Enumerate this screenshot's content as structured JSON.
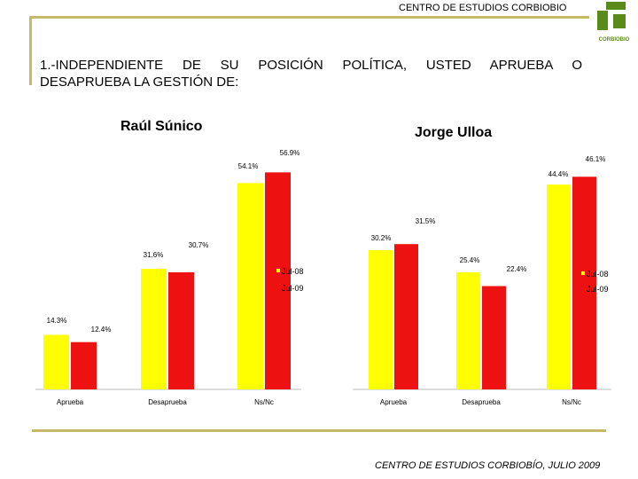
{
  "header": {
    "title": "CENTRO DE ESTUDIOS CORBIOBIO",
    "logo_text": "CORBIOBIO"
  },
  "question": {
    "line1": "1.-INDEPENDIENTE DE SU POSICIÓN POLÍTICA, USTED APRUEBA O",
    "line2": "DESAPRUEBA LA GESTIÓN DE:"
  },
  "colors": {
    "jul08": "#ffff00",
    "jul09": "#ee1111",
    "accent": "#c8b96a",
    "logo": "#5a8a1a"
  },
  "chart_data": [
    {
      "type": "bar",
      "title": "Raúl Súnico",
      "categories": [
        "Aprueba",
        "Desaprueba",
        "Ns/Nc"
      ],
      "series": [
        {
          "name": "Jul-08",
          "values": [
            14.3,
            31.6,
            54.1
          ],
          "labels": [
            "14.3%",
            "31.6%",
            "54.1%"
          ]
        },
        {
          "name": "Jul-09",
          "values": [
            12.4,
            30.7,
            56.9
          ],
          "labels": [
            "12.4%",
            "30.7%",
            "56.9%"
          ]
        }
      ],
      "legend": [
        "Jul-08",
        "Jul-09"
      ],
      "ylim": [
        0,
        60
      ]
    },
    {
      "type": "bar",
      "title": "Jorge Ulloa",
      "categories": [
        "Aprueba",
        "Desaprueba",
        "Ns/Nc"
      ],
      "series": [
        {
          "name": "Jul-08",
          "values": [
            30.2,
            25.4,
            44.4
          ],
          "labels": [
            "30.2%",
            "25.4%",
            "44.4%"
          ]
        },
        {
          "name": "Jul-09",
          "values": [
            31.5,
            22.4,
            46.1
          ],
          "labels": [
            "31.5%",
            "22.4%",
            "46.1%"
          ]
        }
      ],
      "legend": [
        "Jul-08",
        "Jul-09"
      ],
      "ylim": [
        0,
        60
      ]
    }
  ],
  "footer": {
    "text": "CENTRO DE ESTUDIOS CORBIOBÍO, JULIO 2009"
  }
}
